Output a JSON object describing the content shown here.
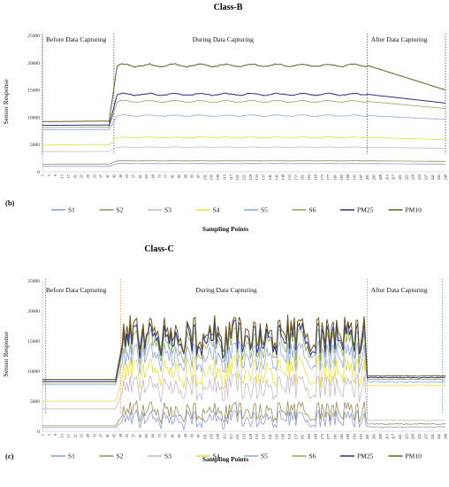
{
  "chart_data": [
    {
      "type": "line",
      "panel_label": "(b)",
      "title": "Class-B",
      "xlabel": "Sampling Points",
      "ylabel": "Sensor Response",
      "ylim": [
        0,
        25000
      ],
      "yticks": [
        "0",
        "5000",
        "10000",
        "15000",
        "20000",
        "25000"
      ],
      "xlim": [
        1,
        249
      ],
      "xticks": [
        "1",
        "5",
        "9",
        "13",
        "17",
        "21",
        "25",
        "29",
        "33",
        "37",
        "41",
        "45",
        "49",
        "53",
        "57",
        "61",
        "65",
        "69",
        "73",
        "77",
        "81",
        "85",
        "89",
        "93",
        "97",
        "101",
        "105",
        "109",
        "113",
        "117",
        "121",
        "125",
        "129",
        "133",
        "137",
        "141",
        "145",
        "149",
        "153",
        "157",
        "161",
        "165",
        "169",
        "173",
        "177",
        "181",
        "185",
        "189",
        "193",
        "197",
        "201",
        "205",
        "209",
        "213",
        "217",
        "221",
        "225",
        "229",
        "233",
        "237",
        "241",
        "245",
        "249"
      ],
      "grid": false,
      "annotations": [
        {
          "text": "Before Data Capturing",
          "x_start": 1,
          "x_end": 45
        },
        {
          "text": "During Data Capturing",
          "x_start": 45,
          "x_end": 201
        },
        {
          "text": "After Data Capturing",
          "x_start": 201,
          "x_end": 249
        }
      ],
      "phase_boundaries": [
        1,
        45,
        201,
        249
      ],
      "series": [
        {
          "name": "S1",
          "color": "#8e9bd6",
          "before": 1000,
          "during": 1500,
          "after": 1400,
          "noise": 0
        },
        {
          "name": "S2",
          "color": "#9a8a5a",
          "before": 1400,
          "during": 2000,
          "after": 1900,
          "noise": 0
        },
        {
          "name": "S3",
          "color": "#c9b6c6",
          "before": 3700,
          "during": 4500,
          "after": 4300,
          "noise": 0
        },
        {
          "name": "S4",
          "color": "#e6df3c",
          "before": 4900,
          "during": 6300,
          "after": 5900,
          "noise": 0
        },
        {
          "name": "S5",
          "color": "#8ea6e0",
          "before": 7700,
          "during": 10300,
          "after": 9600,
          "noise": 0
        },
        {
          "name": "S6",
          "color": "#8aa85a",
          "before": 8100,
          "during": 12900,
          "after": 11600,
          "noise": 0
        },
        {
          "name": "PM25",
          "color": "#2a2f86",
          "before": 8500,
          "during": 14200,
          "after": 12600,
          "noise": 0
        },
        {
          "name": "PM10",
          "color": "#6b5a24",
          "before": 9200,
          "during": 19500,
          "after": 15000,
          "noise": 0
        }
      ]
    },
    {
      "type": "line",
      "panel_label": "(c)",
      "title": "Class-C",
      "xlabel": "Sampling Points",
      "ylabel": "Sensor Response",
      "ylim": [
        0,
        25000
      ],
      "yticks": [
        "0",
        "5000",
        "10000",
        "15000",
        "20000",
        "25000"
      ],
      "xlim": [
        1,
        249
      ],
      "xticks": [
        "1",
        "5",
        "9",
        "13",
        "17",
        "21",
        "25",
        "29",
        "33",
        "37",
        "41",
        "45",
        "49",
        "53",
        "57",
        "61",
        "65",
        "69",
        "73",
        "77",
        "81",
        "85",
        "89",
        "93",
        "97",
        "101",
        "105",
        "109",
        "113",
        "117",
        "121",
        "125",
        "129",
        "133",
        "137",
        "141",
        "145",
        "149",
        "153",
        "157",
        "161",
        "165",
        "169",
        "173",
        "177",
        "181",
        "185",
        "189",
        "193",
        "197",
        "201",
        "205",
        "209",
        "213",
        "217",
        "221",
        "225",
        "229",
        "233",
        "237",
        "241",
        "245",
        "249"
      ],
      "grid": false,
      "annotations": [
        {
          "text": "Before Data Capturing",
          "x_start": 1,
          "x_end": 49
        },
        {
          "text": "During Data Capturing",
          "x_start": 49,
          "x_end": 201
        },
        {
          "text": "After Data Capturing",
          "x_start": 201,
          "x_end": 249
        }
      ],
      "phase_boundaries": [
        3,
        49,
        201,
        247
      ],
      "series": [
        {
          "name": "S1",
          "color": "#8e9bd6",
          "before": 600,
          "during": 1800,
          "after": 700,
          "noise": 1500
        },
        {
          "name": "S2",
          "color": "#9a8a5a",
          "before": 900,
          "during": 3000,
          "after": 1200,
          "noise": 1700
        },
        {
          "name": "S3",
          "color": "#c9b6c6",
          "before": 3700,
          "during": 7000,
          "after": 1800,
          "noise": 2200
        },
        {
          "name": "S4",
          "color": "#e6df3c",
          "before": 5000,
          "during": 9500,
          "after": 7600,
          "noise": 2600
        },
        {
          "name": "S5",
          "color": "#8ea6e0",
          "before": 7700,
          "during": 12000,
          "after": 8200,
          "noise": 2600
        },
        {
          "name": "S6",
          "color": "#8aa85a",
          "before": 8000,
          "during": 14000,
          "after": 8600,
          "noise": 2800
        },
        {
          "name": "PM25",
          "color": "#2a2f86",
          "before": 8300,
          "during": 15000,
          "after": 8900,
          "noise": 2800
        },
        {
          "name": "PM10",
          "color": "#6b5a24",
          "before": 8600,
          "during": 15800,
          "after": 9200,
          "noise": 3000
        }
      ]
    }
  ]
}
